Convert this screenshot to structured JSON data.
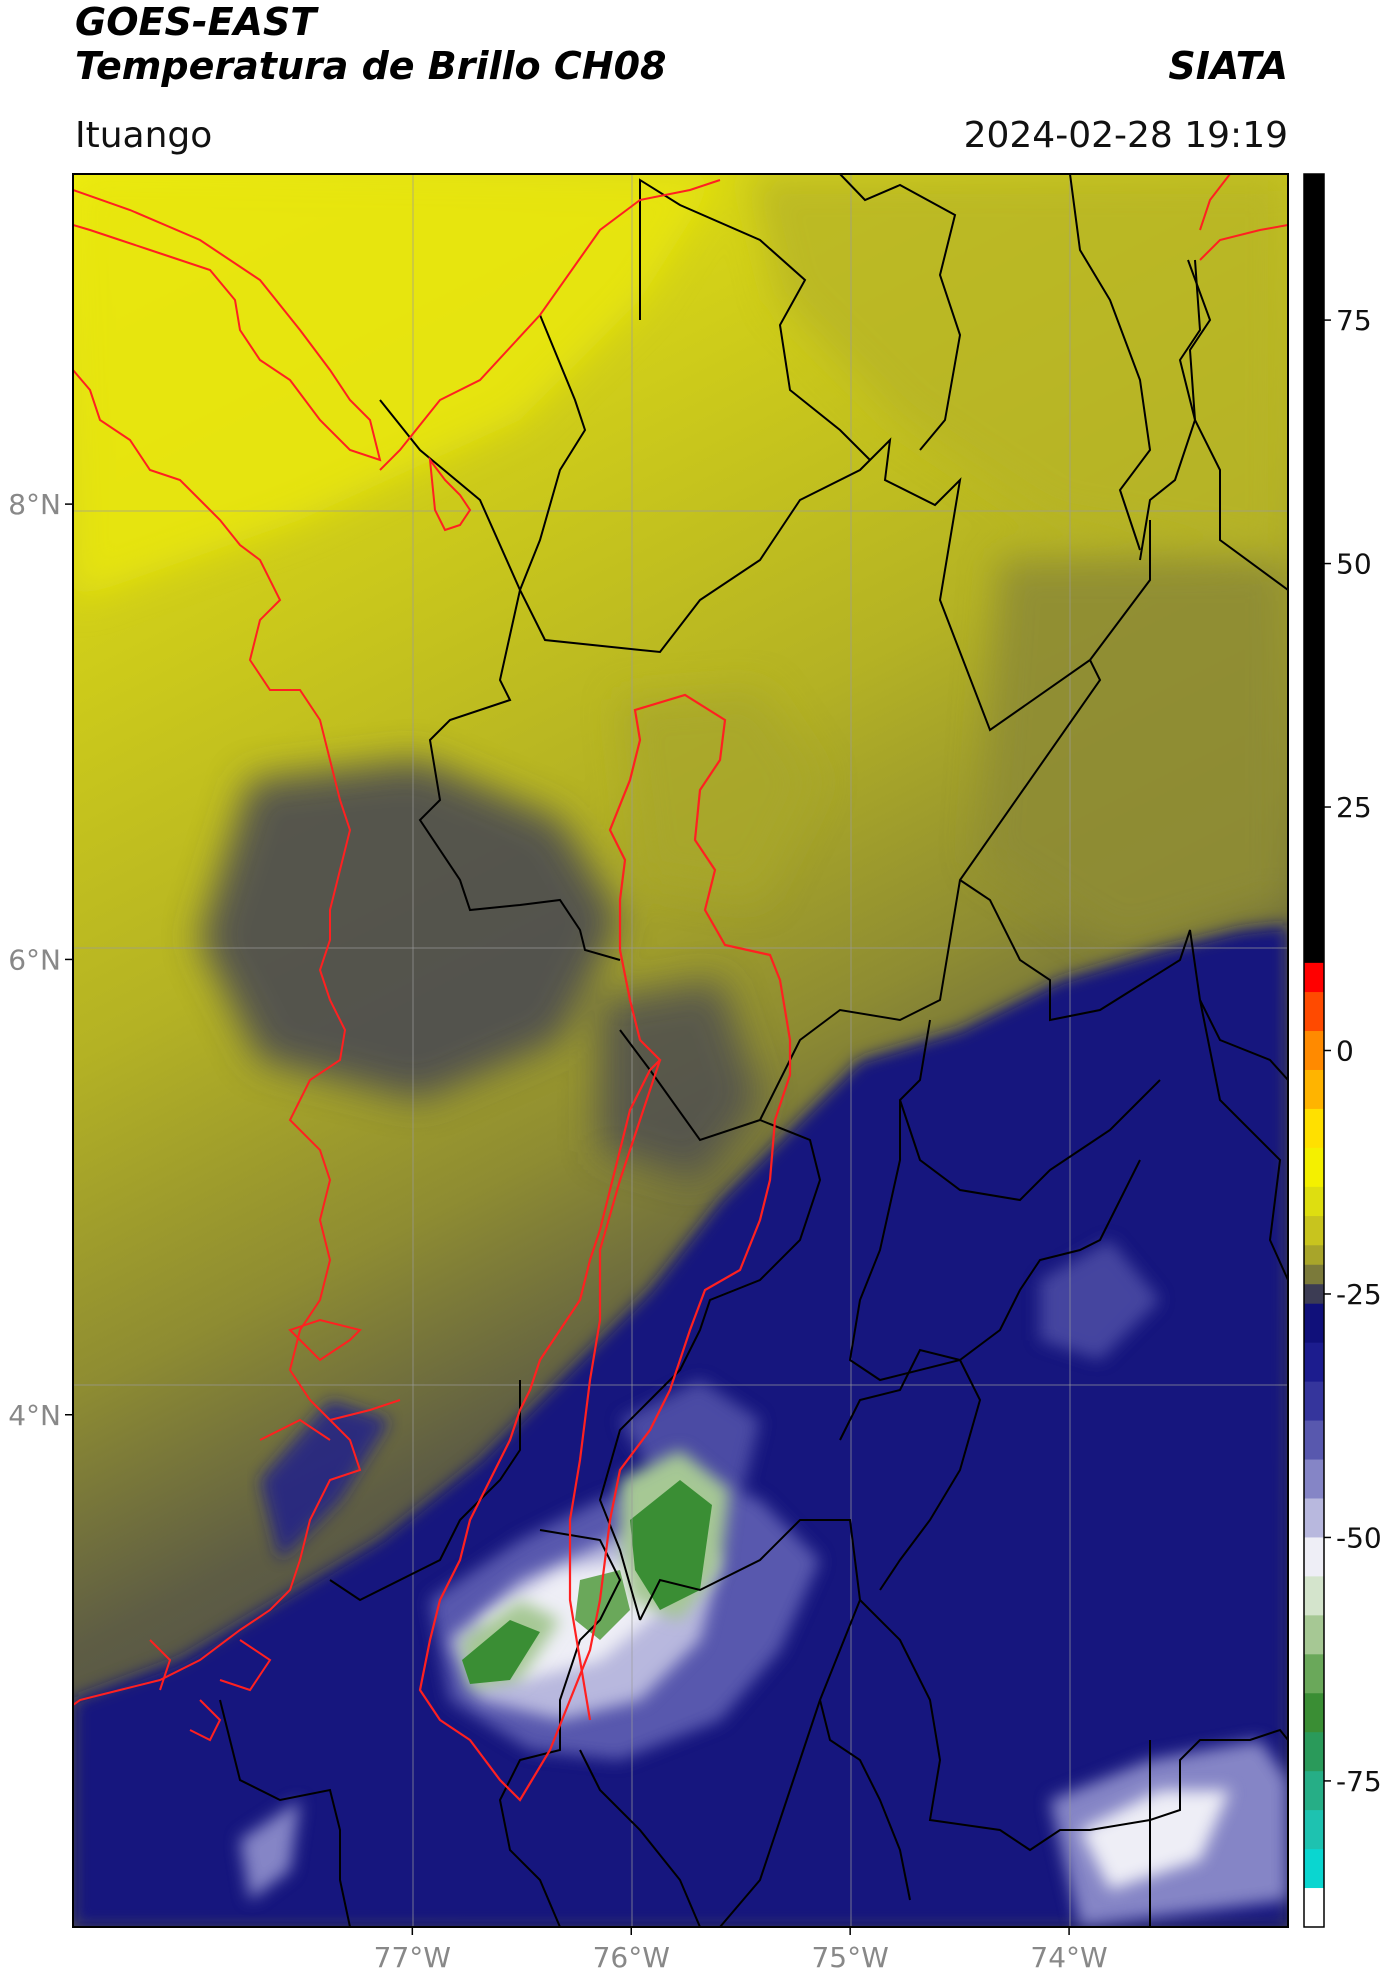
{
  "header": {
    "title_line1": "GOES-EAST",
    "title_line2": "Temperatura de Brillo CH08",
    "organization": "SIATA",
    "location": "Ituango",
    "datetime": "2024-02-28 19:19"
  },
  "map": {
    "lon_range": [
      -78.55,
      -73.0
    ],
    "lat_range": [
      1.75,
      9.45
    ],
    "lon_ticks": [
      {
        "value": -77,
        "label": "77°W"
      },
      {
        "value": -76,
        "label": "76°W"
      },
      {
        "value": -75,
        "label": "75°W"
      },
      {
        "value": -74,
        "label": "74°W"
      }
    ],
    "lat_ticks": [
      {
        "value": 8,
        "label": "8°N"
      },
      {
        "value": 6,
        "label": "6°N"
      },
      {
        "value": 4,
        "label": "4°N"
      }
    ],
    "colors": {
      "coastline": "#ff2020",
      "boundaries": "#000000",
      "basin": "#ff2020",
      "grid": "#9a9a9a"
    }
  },
  "colorbar": {
    "range": [
      -90,
      90
    ],
    "ticks": [
      {
        "value": 75,
        "label": "75"
      },
      {
        "value": 50,
        "label": "50"
      },
      {
        "value": 25,
        "label": "25"
      },
      {
        "value": 0,
        "label": "0"
      },
      {
        "value": -25,
        "label": "-25"
      },
      {
        "value": -50,
        "label": "-50"
      },
      {
        "value": -75,
        "label": "-75"
      }
    ],
    "segments": [
      {
        "from": 9,
        "to": 90,
        "color": "#000000"
      },
      {
        "from": 6,
        "to": 9,
        "color": "#ff0000"
      },
      {
        "from": 2,
        "to": 6,
        "color": "#ff4a00"
      },
      {
        "from": -2,
        "to": 2,
        "color": "#ff8a00"
      },
      {
        "from": -6,
        "to": -2,
        "color": "#ffb400"
      },
      {
        "from": -10,
        "to": -6,
        "color": "#ffe000"
      },
      {
        "from": -14,
        "to": -10,
        "color": "#f4f000"
      },
      {
        "from": -17,
        "to": -14,
        "color": "#dede10"
      },
      {
        "from": -20,
        "to": -17,
        "color": "#c8c41e"
      },
      {
        "from": -22,
        "to": -20,
        "color": "#a8a52a"
      },
      {
        "from": -24,
        "to": -22,
        "color": "#7b7a3a"
      },
      {
        "from": -26,
        "to": -24,
        "color": "#3c3c54"
      },
      {
        "from": -30,
        "to": -26,
        "color": "#10107a"
      },
      {
        "from": -34,
        "to": -30,
        "color": "#1c1c8e"
      },
      {
        "from": -38,
        "to": -34,
        "color": "#35359c"
      },
      {
        "from": -42,
        "to": -38,
        "color": "#5858ae"
      },
      {
        "from": -46,
        "to": -42,
        "color": "#8585c6"
      },
      {
        "from": -50,
        "to": -46,
        "color": "#b8b8de"
      },
      {
        "from": -54,
        "to": -50,
        "color": "#eeeef6"
      },
      {
        "from": -58,
        "to": -54,
        "color": "#d4e4cc"
      },
      {
        "from": -62,
        "to": -58,
        "color": "#a6c894"
      },
      {
        "from": -66,
        "to": -62,
        "color": "#6aa85a"
      },
      {
        "from": -70,
        "to": -66,
        "color": "#3a8e34"
      },
      {
        "from": -74,
        "to": -70,
        "color": "#2a9a5a"
      },
      {
        "from": -78,
        "to": -74,
        "color": "#26ae86"
      },
      {
        "from": -82,
        "to": -78,
        "color": "#1ec2b0"
      },
      {
        "from": -86,
        "to": -82,
        "color": "#0ad6d0"
      },
      {
        "from": -90,
        "to": -86,
        "color": "#ffffff"
      }
    ]
  }
}
